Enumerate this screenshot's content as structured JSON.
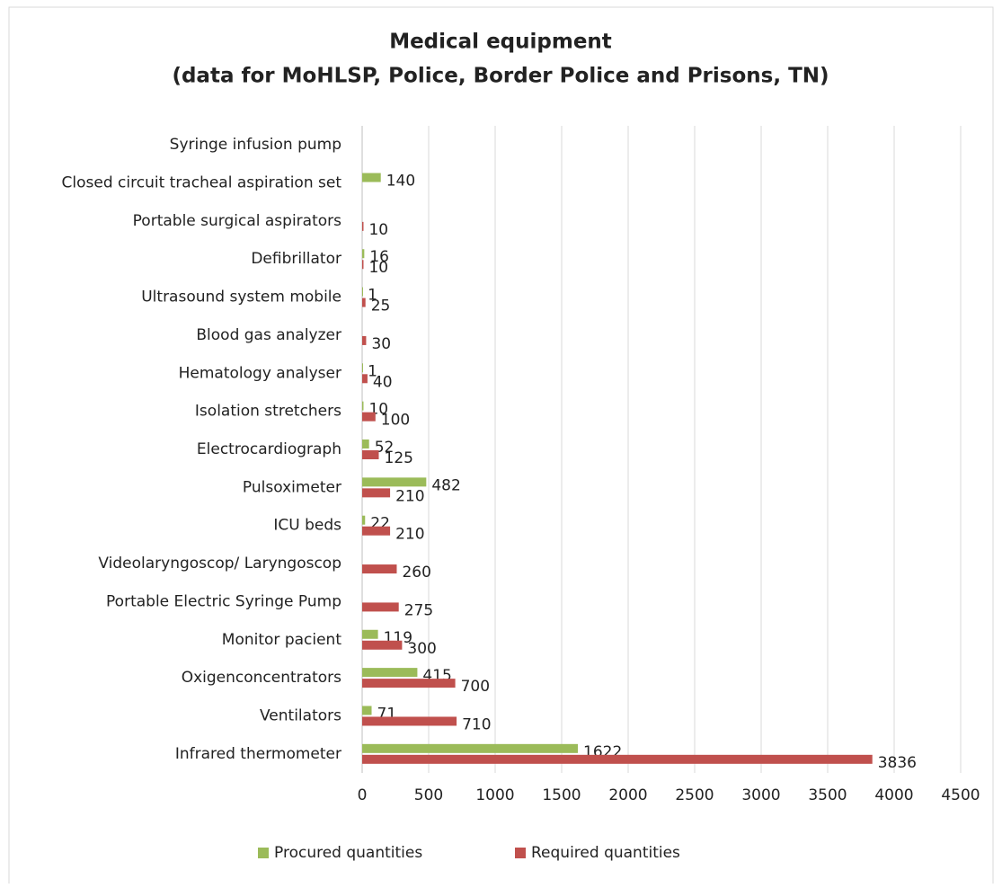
{
  "chart_data": {
    "type": "bar",
    "orientation": "horizontal",
    "title": "Medical equipment",
    "subtitle": "(data for MoHLSP, Police, Border Police and Prisons, TN)",
    "categories": [
      "Infrared thermometer",
      "Ventilators",
      "Oxigenconcentrators",
      "Monitor pacient",
      "Portable Electric Syringe Pump",
      "Videolaryngoscop/ Laryngoscop",
      "ICU beds",
      "Pulsoximeter",
      "Electrocardiograph",
      "Isolation stretchers",
      "Hematology analyser",
      "Blood gas analyzer",
      "Ultrasound system mobile",
      "Defibrillator",
      "Portable surgical aspirators",
      "Closed circuit tracheal aspiration set",
      "Syringe infusion pump"
    ],
    "series": [
      {
        "name": "Procured quantities",
        "color": "#9bbb59",
        "values": [
          1622,
          71,
          415,
          119,
          null,
          null,
          22,
          482,
          52,
          10,
          1,
          null,
          1,
          16,
          null,
          140,
          null
        ]
      },
      {
        "name": "Required quantities",
        "color": "#c0504d",
        "values": [
          3836,
          710,
          700,
          300,
          275,
          260,
          210,
          210,
          125,
          100,
          40,
          30,
          25,
          10,
          10,
          null,
          null
        ]
      }
    ],
    "xlim": [
      0,
      4500
    ],
    "xticks": [
      0,
      500,
      1000,
      1500,
      2000,
      2500,
      3000,
      3500,
      4000,
      4500
    ],
    "grid": true,
    "legend": "bottom"
  }
}
